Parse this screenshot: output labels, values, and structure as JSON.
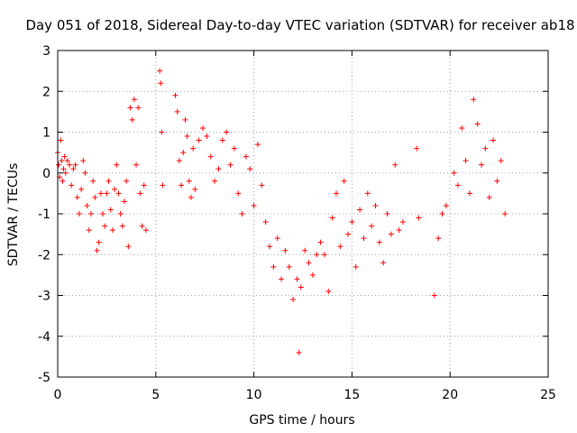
{
  "chart_data": {
    "type": "scatter",
    "title": "Day 051 of 2018, Sidereal Day-to-day VTEC variation (SDTVAR) for receiver ab18",
    "xlabel": "GPS time / hours",
    "ylabel": "SDTVAR / TECUs",
    "xlim": [
      0,
      25
    ],
    "ylim": [
      -5,
      3
    ],
    "xticks": [
      "0",
      "5",
      "10",
      "15",
      "20",
      "25"
    ],
    "yticks": [
      "3",
      "2",
      "1",
      "0",
      "-1",
      "-2",
      "-3",
      "-4",
      "-5"
    ],
    "grid": true,
    "marker": "plus",
    "color": "#ff0000",
    "series": [
      {
        "name": "SDTVAR",
        "x": [
          0.0,
          0.05,
          0.1,
          0.15,
          0.2,
          0.25,
          0.3,
          0.35,
          0.4,
          0.5,
          0.6,
          0.7,
          0.8,
          0.9,
          1.0,
          1.1,
          1.2,
          1.3,
          1.4,
          1.5,
          1.6,
          1.7,
          1.8,
          1.9,
          2.0,
          2.1,
          2.2,
          2.3,
          2.4,
          2.5,
          2.6,
          2.7,
          2.8,
          2.9,
          3.0,
          3.1,
          3.2,
          3.3,
          3.4,
          3.5,
          3.6,
          3.7,
          3.8,
          3.9,
          4.0,
          4.1,
          4.2,
          4.3,
          4.4,
          4.5,
          5.2,
          5.25,
          5.3,
          5.35,
          6.0,
          6.1,
          6.2,
          6.3,
          6.4,
          6.5,
          6.6,
          6.7,
          6.8,
          6.9,
          7.0,
          7.2,
          7.4,
          7.6,
          7.8,
          8.0,
          8.2,
          8.4,
          8.6,
          8.8,
          9.0,
          9.2,
          9.4,
          9.6,
          9.8,
          10.0,
          10.2,
          10.4,
          10.6,
          10.8,
          11.0,
          11.2,
          11.4,
          11.6,
          11.8,
          12.0,
          12.2,
          12.3,
          12.4,
          12.6,
          12.8,
          13.0,
          13.2,
          13.4,
          13.6,
          13.8,
          14.0,
          14.2,
          14.4,
          14.6,
          14.8,
          15.0,
          15.2,
          15.4,
          15.6,
          15.8,
          16.0,
          16.2,
          16.4,
          16.6,
          16.8,
          17.0,
          17.2,
          17.4,
          17.6,
          18.3,
          18.4,
          19.2,
          19.4,
          19.6,
          19.8,
          20.2,
          20.4,
          20.6,
          20.8,
          21.0,
          21.2,
          21.4,
          21.6,
          21.8,
          22.0,
          22.2,
          22.4,
          22.6,
          22.8
        ],
        "y": [
          0.5,
          0.2,
          -0.1,
          0.8,
          0.3,
          -0.2,
          0.1,
          0.4,
          0.0,
          0.3,
          0.2,
          -0.3,
          0.1,
          0.2,
          -0.6,
          -1.0,
          -0.4,
          0.3,
          0.0,
          -0.8,
          -1.4,
          -1.0,
          -0.2,
          -0.6,
          -1.9,
          -1.7,
          -0.5,
          -1.0,
          -1.3,
          -0.5,
          -0.2,
          -0.9,
          -1.4,
          -0.4,
          0.2,
          -0.5,
          -1.0,
          -1.3,
          -0.7,
          -0.2,
          -1.8,
          1.6,
          1.3,
          1.8,
          0.2,
          1.6,
          -0.5,
          -1.3,
          -0.3,
          -1.4,
          2.5,
          2.2,
          1.0,
          -0.3,
          1.9,
          1.5,
          0.3,
          -0.3,
          0.5,
          1.3,
          0.9,
          -0.2,
          -0.6,
          0.6,
          -0.4,
          0.8,
          1.1,
          0.9,
          0.4,
          -0.2,
          0.1,
          0.8,
          1.0,
          0.2,
          0.6,
          -0.5,
          -1.0,
          0.4,
          0.1,
          -0.8,
          0.7,
          -0.3,
          -1.2,
          -1.8,
          -2.3,
          -1.6,
          -2.6,
          -1.9,
          -2.3,
          -3.1,
          -2.6,
          -4.4,
          -2.8,
          -1.9,
          -2.2,
          -2.5,
          -2.0,
          -1.7,
          -2.0,
          -2.9,
          -1.1,
          -0.5,
          -1.8,
          -0.2,
          -1.5,
          -1.2,
          -2.3,
          -0.9,
          -1.6,
          -0.5,
          -1.3,
          -0.8,
          -1.7,
          -2.2,
          -1.0,
          -1.5,
          0.2,
          -1.4,
          -1.2,
          0.6,
          -1.1,
          -3.0,
          -1.6,
          -1.0,
          -0.8,
          0.0,
          -0.3,
          1.1,
          0.3,
          -0.5,
          1.8,
          1.2,
          0.2,
          0.6,
          -0.6,
          0.8,
          -0.2,
          0.3,
          -1.0
        ]
      }
    ]
  }
}
